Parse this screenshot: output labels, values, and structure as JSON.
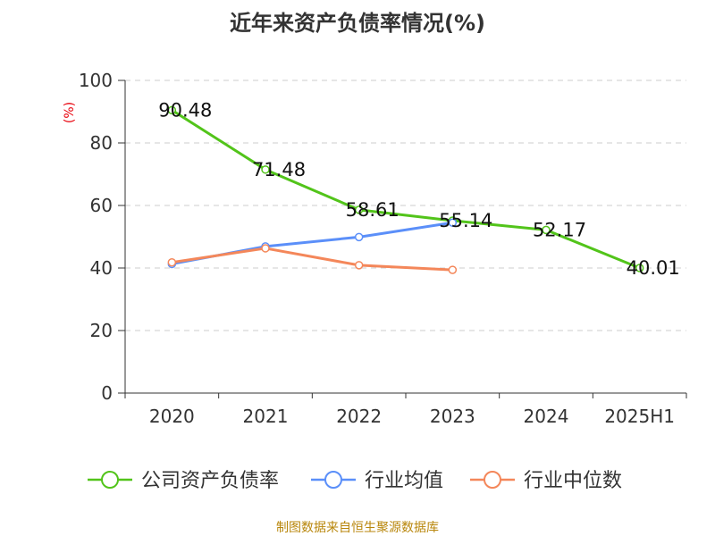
{
  "title": "近年来资产负债率情况(%)",
  "source": "制图数据来自恒生聚源数据库",
  "chart_data": {
    "type": "line",
    "title": "近年来资产负债率情况(%)",
    "ylabel": "(%)",
    "xlabel": "",
    "categories": [
      "2020",
      "2021",
      "2022",
      "2023",
      "2024",
      "2025H1"
    ],
    "ylim": [
      0,
      100
    ],
    "yticks": [
      0,
      20,
      40,
      60,
      80,
      100
    ],
    "grid": true,
    "legend_position": "bottom",
    "series": [
      {
        "name": "公司资产负债率",
        "color": "#52c41a",
        "values": [
          90.48,
          71.48,
          58.61,
          55.14,
          52.17,
          40.01
        ],
        "labels": [
          "90.48",
          "71.48",
          "58.61",
          "55.14",
          "52.17",
          "40.01"
        ]
      },
      {
        "name": "行业均值",
        "color": "#5b8ff9",
        "values": [
          41.3,
          46.9,
          49.9,
          54.5,
          null,
          null
        ]
      },
      {
        "name": "行业中位数",
        "color": "#f4875a",
        "values": [
          41.8,
          46.3,
          40.9,
          39.4,
          null,
          null
        ]
      }
    ]
  }
}
